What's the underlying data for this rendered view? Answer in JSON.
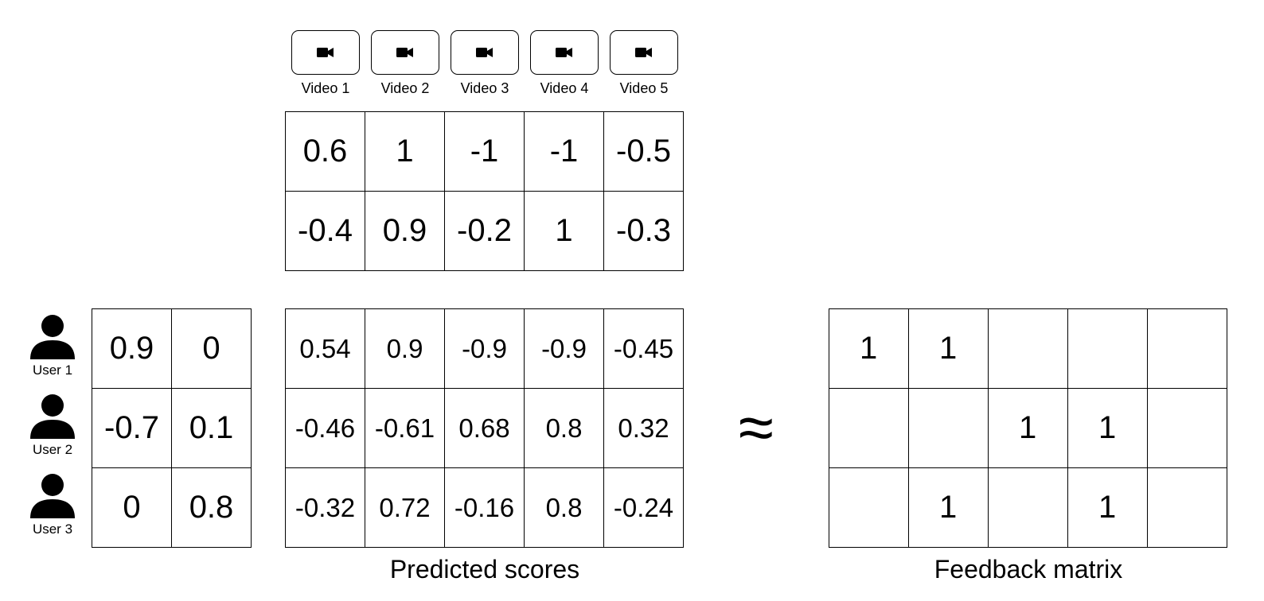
{
  "videos": [
    {
      "label": "Video 1",
      "icon": "video-camera-icon"
    },
    {
      "label": "Video 2",
      "icon": "video-camera-icon"
    },
    {
      "label": "Video 3",
      "icon": "video-camera-icon"
    },
    {
      "label": "Video 4",
      "icon": "video-camera-icon"
    },
    {
      "label": "Video 5",
      "icon": "video-camera-icon"
    }
  ],
  "video_embeddings": [
    [
      "0.6",
      "1",
      "-1",
      "-1",
      "-0.5"
    ],
    [
      "-0.4",
      "0.9",
      "-0.2",
      "1",
      "-0.3"
    ]
  ],
  "users": [
    {
      "label": "User 1",
      "icon": "person-icon"
    },
    {
      "label": "User 2",
      "icon": "person-icon"
    },
    {
      "label": "User 3",
      "icon": "person-icon"
    }
  ],
  "user_embeddings": [
    [
      "0.9",
      "0"
    ],
    [
      "-0.7",
      "0.1"
    ],
    [
      "0",
      "0.8"
    ]
  ],
  "predicted_scores": [
    [
      "0.54",
      "0.9",
      "-0.9",
      "-0.9",
      "-0.45"
    ],
    [
      "-0.46",
      "-0.61",
      "0.68",
      "0.8",
      "0.32"
    ],
    [
      "-0.32",
      "0.72",
      "-0.16",
      "0.8",
      "-0.24"
    ]
  ],
  "feedback_matrix": [
    [
      "1",
      "1",
      "",
      "",
      ""
    ],
    [
      "",
      "",
      "1",
      "1",
      ""
    ],
    [
      "",
      "1",
      "",
      "1",
      ""
    ]
  ],
  "approx_symbol": "≈",
  "captions": {
    "predicted": "Predicted scores",
    "feedback": "Feedback matrix"
  }
}
